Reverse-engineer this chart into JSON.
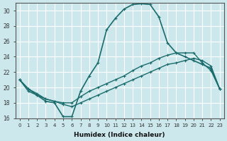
{
  "xlabel": "Humidex (Indice chaleur)",
  "xlim_min": -0.5,
  "xlim_max": 23.5,
  "ylim_min": 16,
  "ylim_max": 31,
  "yticks": [
    16,
    18,
    20,
    22,
    24,
    26,
    28,
    30
  ],
  "xticks": [
    0,
    1,
    2,
    3,
    4,
    5,
    6,
    7,
    8,
    9,
    10,
    11,
    12,
    13,
    14,
    15,
    16,
    17,
    18,
    19,
    20,
    21,
    22,
    23
  ],
  "bg_color": "#cce8ec",
  "grid_color": "#ffffff",
  "line_color": "#1a6b6b",
  "lines": [
    {
      "x": [
        0,
        1,
        2,
        3,
        4,
        5,
        6,
        7,
        8,
        9,
        10,
        11,
        12,
        13,
        14,
        15,
        16,
        17,
        18,
        19,
        20,
        21,
        22,
        23
      ],
      "y": [
        21.0,
        19.8,
        19.0,
        18.2,
        18.0,
        16.2,
        16.2,
        19.5,
        21.5,
        23.2,
        27.5,
        29.0,
        30.2,
        30.8,
        30.9,
        30.8,
        29.2,
        25.8,
        24.5,
        24.0,
        23.5,
        23.0,
        22.5,
        19.8
      ],
      "marker": "+",
      "markersize": 3.5,
      "linewidth": 1.2
    },
    {
      "x": [
        0,
        1,
        2,
        3,
        4,
        5,
        6,
        7,
        8,
        9,
        10,
        11,
        12,
        13,
        14,
        15,
        16,
        17,
        18,
        19,
        20,
        21,
        22,
        23
      ],
      "y": [
        21.0,
        19.8,
        19.2,
        18.5,
        18.2,
        18.0,
        18.0,
        18.8,
        19.5,
        20.0,
        20.5,
        21.0,
        21.5,
        22.2,
        22.8,
        23.2,
        23.8,
        24.2,
        24.5,
        24.5,
        24.5,
        23.2,
        22.2,
        19.8
      ],
      "marker": "+",
      "markersize": 3.5,
      "linewidth": 1.0
    },
    {
      "x": [
        0,
        1,
        2,
        3,
        4,
        5,
        6,
        7,
        8,
        9,
        10,
        11,
        12,
        13,
        14,
        15,
        16,
        17,
        18,
        19,
        20,
        21,
        22,
        23
      ],
      "y": [
        21.0,
        19.5,
        19.0,
        18.5,
        18.2,
        17.8,
        17.5,
        18.0,
        18.5,
        19.0,
        19.5,
        20.0,
        20.5,
        21.0,
        21.5,
        22.0,
        22.5,
        23.0,
        23.2,
        23.5,
        23.8,
        23.5,
        22.8,
        19.8
      ],
      "marker": "+",
      "markersize": 3.5,
      "linewidth": 1.0
    }
  ]
}
